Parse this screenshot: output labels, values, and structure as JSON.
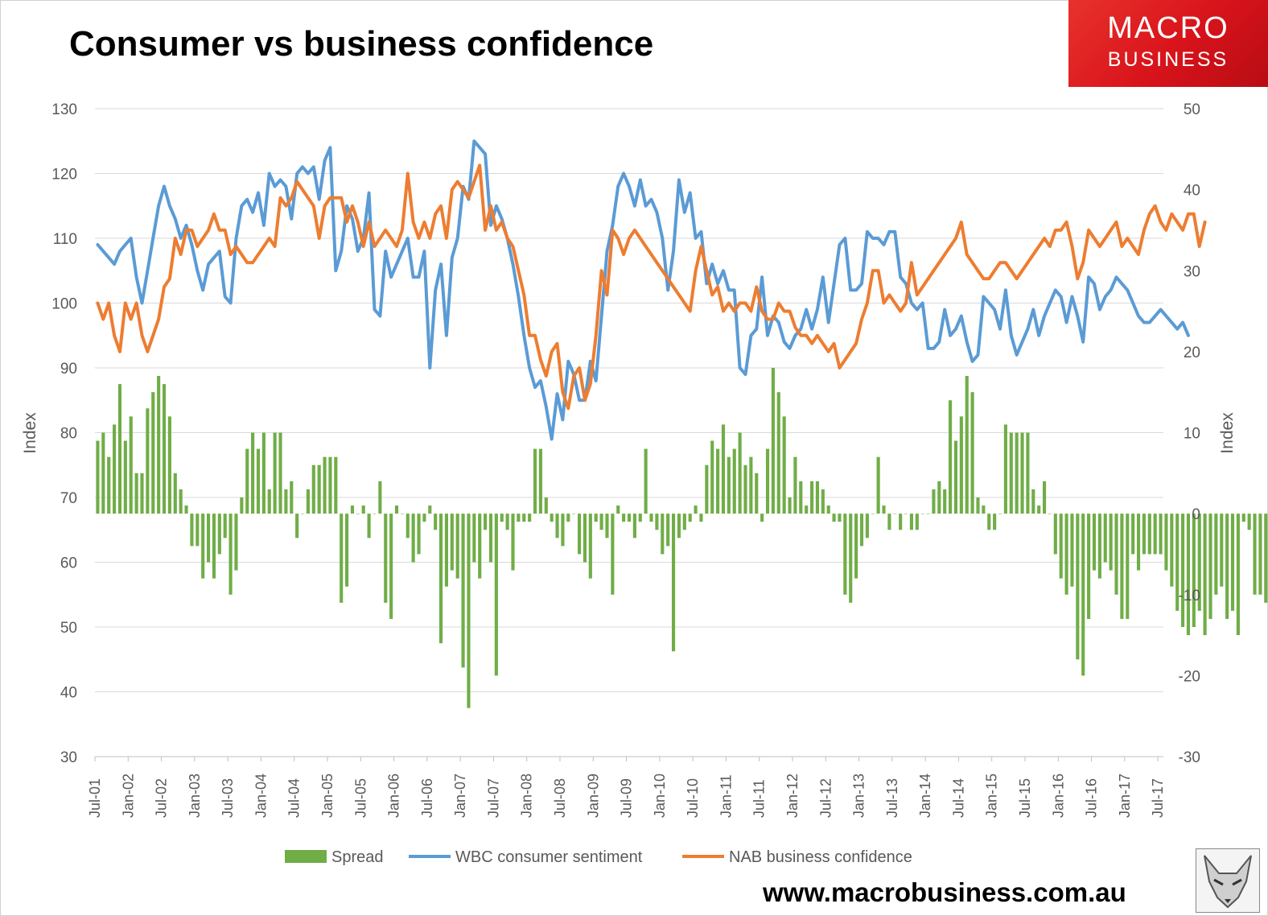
{
  "header": {
    "title": "Consumer vs business confidence"
  },
  "logo": {
    "line1": "MACRO",
    "line2": "BUSINESS",
    "bg_color": "#d8131b"
  },
  "footer": {
    "url": "www.macrobusiness.com.au",
    "mascot_icon": "fox-icon"
  },
  "colors": {
    "spread": "#70ad47",
    "wbc": "#5b9bd5",
    "nab": "#ed7d31",
    "grid": "#d9d9d9",
    "axis_text": "#595959"
  },
  "chart_data": {
    "type": "line",
    "title": "Consumer vs business confidence",
    "x_start": "2001-07",
    "x_end": "2017-08",
    "x_ticks": [
      "Jul-01",
      "Jan-02",
      "Jul-02",
      "Jan-03",
      "Jul-03",
      "Jan-04",
      "Jul-04",
      "Jan-05",
      "Jul-05",
      "Jan-06",
      "Jul-06",
      "Jan-07",
      "Jul-07",
      "Jan-08",
      "Jul-08",
      "Jan-09",
      "Jul-09",
      "Jan-10",
      "Jul-10",
      "Jan-11",
      "Jul-11",
      "Jan-12",
      "Jul-12",
      "Jan-13",
      "Jul-13",
      "Jan-14",
      "Jul-14",
      "Jan-15",
      "Jul-15",
      "Jan-16",
      "Jul-16",
      "Jan-17",
      "Jul-17"
    ],
    "y_left": {
      "label": "Index",
      "min": 30,
      "max": 130,
      "ticks": [
        "30",
        "40",
        "50",
        "60",
        "70",
        "80",
        "90",
        "100",
        "110",
        "120",
        "130"
      ]
    },
    "y_right": {
      "label": "Index",
      "min": -30,
      "max": 50,
      "ticks": [
        "-30",
        "-20",
        "-10",
        "0",
        "10",
        "20",
        "30",
        "40",
        "50"
      ]
    },
    "grid": true,
    "legend_position": "bottom",
    "series": [
      {
        "name": "Spread",
        "type": "bar",
        "axis": "right",
        "color": "#70ad47",
        "values": [
          9,
          10,
          7,
          11,
          16,
          9,
          12,
          5,
          5,
          13,
          15,
          17,
          16,
          12,
          5,
          3,
          1,
          -4,
          -4,
          -8,
          -6,
          -8,
          -5,
          -3,
          -10,
          -7,
          2,
          8,
          10,
          8,
          10,
          3,
          10,
          10,
          3,
          4,
          -3,
          0,
          3,
          6,
          6,
          7,
          7,
          7,
          -11,
          -9,
          1,
          0,
          1,
          -3,
          0,
          4,
          -11,
          -13,
          1,
          0,
          -3,
          -6,
          -5,
          -1,
          1,
          -2,
          -16,
          -9,
          -7,
          -8,
          -19,
          -24,
          -6,
          -8,
          -2,
          -6,
          -20,
          -1,
          -2,
          -7,
          -1,
          -1,
          -1,
          8,
          8,
          2,
          -1,
          -3,
          -4,
          -1,
          0,
          -5,
          -6,
          -8,
          -1,
          -2,
          -3,
          -10,
          1,
          -1,
          -1,
          -3,
          -1,
          8,
          -1,
          -2,
          -5,
          -4,
          -17,
          -3,
          -2,
          -1,
          1,
          -1,
          6,
          9,
          8,
          11,
          7,
          8,
          10,
          6,
          7,
          5,
          -1,
          8,
          18,
          15,
          12,
          2,
          7,
          4,
          1,
          4,
          4,
          3,
          1,
          -1,
          -1,
          -10,
          -11,
          -8,
          -4,
          -3,
          0,
          7,
          1,
          -2,
          0,
          -2,
          0,
          -2,
          -2,
          0,
          0,
          3,
          4,
          3,
          14,
          9,
          12,
          17,
          15,
          2,
          1,
          -2,
          -2,
          0,
          11,
          10,
          10,
          10,
          10,
          3,
          1,
          4,
          0,
          -5,
          -8,
          -10,
          -9,
          -18,
          -20,
          -13,
          -7,
          -8,
          -6,
          -7,
          -10,
          -13,
          -13,
          -5,
          -7,
          -5,
          -5,
          -5,
          -5,
          -7,
          -9,
          -12,
          -14,
          -15,
          -14,
          -12,
          -15,
          -13,
          -10,
          -9,
          -13,
          -12,
          -15,
          -1,
          -2,
          -10,
          -10,
          -11,
          -10,
          -7,
          -7,
          -13,
          -8,
          -9,
          -10,
          -5,
          -10,
          -13,
          -5,
          -5,
          -5,
          -8,
          -9,
          -12,
          -15,
          -14,
          -13,
          -12,
          -14,
          -12,
          -12,
          -15,
          -13,
          -19,
          -14
        ]
      },
      {
        "name": "WBC consumer sentiment",
        "type": "line",
        "axis": "left",
        "color": "#5b9bd5",
        "values": [
          109,
          108,
          107,
          106,
          108,
          109,
          110,
          104,
          100,
          105,
          110,
          115,
          118,
          115,
          113,
          110,
          112,
          109,
          105,
          102,
          106,
          107,
          108,
          101,
          100,
          110,
          115,
          116,
          114,
          117,
          112,
          120,
          118,
          119,
          118,
          113,
          120,
          121,
          120,
          121,
          116,
          122,
          124,
          105,
          108,
          115,
          113,
          108,
          110,
          117,
          99,
          98,
          108,
          104,
          106,
          108,
          110,
          104,
          104,
          108,
          90,
          102,
          106,
          95,
          107,
          110,
          118,
          116,
          125,
          124,
          123,
          112,
          115,
          113,
          110,
          106,
          101,
          95,
          90,
          87,
          88,
          84,
          79,
          86,
          82,
          91,
          89,
          85,
          85,
          91,
          88,
          98,
          108,
          112,
          118,
          120,
          118,
          115,
          119,
          115,
          116,
          114,
          110,
          102,
          108,
          119,
          114,
          117,
          110,
          111,
          103,
          106,
          103,
          105,
          102,
          102,
          90,
          89,
          95,
          96,
          104,
          95,
          98,
          97,
          94,
          93,
          95,
          96,
          99,
          96,
          99,
          104,
          97,
          103,
          109,
          110,
          102,
          102,
          103,
          111,
          110,
          110,
          109,
          111,
          111,
          104,
          103,
          100,
          99,
          100,
          93,
          93,
          94,
          99,
          95,
          96,
          98,
          94,
          91,
          92,
          101,
          100,
          99,
          96,
          102,
          95,
          92,
          94,
          96,
          99,
          95,
          98,
          100,
          102,
          101,
          97,
          101,
          98,
          94,
          104,
          103,
          99,
          101,
          102,
          104,
          103,
          102,
          100,
          98,
          97,
          97,
          98,
          99,
          98,
          97,
          96,
          97,
          95
        ]
      },
      {
        "name": "NAB business confidence",
        "type": "line",
        "axis": "right",
        "color": "#ed7d31",
        "values": [
          26,
          24,
          26,
          22,
          20,
          26,
          24,
          26,
          22,
          20,
          22,
          24,
          28,
          29,
          34,
          32,
          35,
          35,
          33,
          34,
          35,
          37,
          35,
          35,
          32,
          33,
          32,
          31,
          31,
          32,
          33,
          34,
          33,
          39,
          38,
          39,
          41,
          40,
          39,
          38,
          34,
          38,
          39,
          39,
          39,
          36,
          38,
          36,
          33,
          36,
          33,
          34,
          35,
          34,
          33,
          35,
          42,
          36,
          34,
          36,
          34,
          37,
          38,
          34,
          40,
          41,
          40,
          39,
          41,
          43,
          35,
          38,
          35,
          36,
          34,
          33,
          30,
          27,
          22,
          22,
          19,
          17,
          20,
          21,
          15,
          13,
          17,
          18,
          14,
          16,
          22,
          30,
          27,
          35,
          34,
          32,
          34,
          35,
          34,
          33,
          32,
          31,
          30,
          29,
          28,
          27,
          26,
          25,
          30,
          33,
          30,
          27,
          28,
          25,
          26,
          25,
          26,
          26,
          25,
          28,
          25,
          24,
          24,
          26,
          25,
          25,
          23,
          22,
          22,
          21,
          22,
          21,
          20,
          21,
          18,
          19,
          20,
          21,
          24,
          26,
          30,
          30,
          26,
          27,
          26,
          25,
          26,
          31,
          27,
          28,
          29,
          30,
          31,
          32,
          33,
          34,
          36,
          32,
          31,
          30,
          29,
          29,
          30,
          31,
          31,
          30,
          29,
          30,
          31,
          32,
          33,
          34,
          33,
          35,
          35,
          36,
          33,
          29,
          31,
          35,
          34,
          33,
          34,
          35,
          36,
          33,
          34,
          33,
          32,
          35,
          37,
          38,
          36,
          35,
          37,
          36,
          35,
          37,
          37,
          33,
          36
        ]
      }
    ]
  }
}
